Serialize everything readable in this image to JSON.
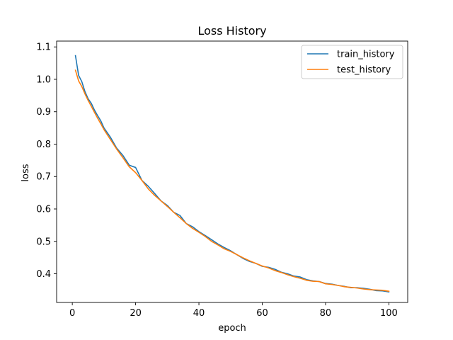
{
  "chart_data": {
    "type": "line",
    "title": "Loss History",
    "xlabel": "epoch",
    "ylabel": "loss",
    "xlim": [
      -4.95,
      105.95
    ],
    "ylim": [
      0.3115,
      1.118
    ],
    "xticks": [
      0,
      20,
      40,
      60,
      80,
      100
    ],
    "yticks": [
      0.4,
      0.5,
      0.6,
      0.7,
      0.8,
      0.9,
      1.0,
      1.1
    ],
    "xtick_labels": [
      "0",
      "20",
      "40",
      "60",
      "80",
      "100"
    ],
    "ytick_labels": [
      "0.4",
      "0.5",
      "0.6",
      "0.7",
      "0.8",
      "0.9",
      "1.0",
      "1.1"
    ],
    "legend": "top-right",
    "grid": false,
    "series": [
      {
        "name": "train_history",
        "color": "#1f77b4",
        "x": [
          1,
          2,
          3,
          4,
          5,
          6,
          7,
          8,
          9,
          10,
          12,
          14,
          16,
          18,
          20,
          22,
          24,
          26,
          28,
          30,
          32,
          34,
          36,
          38,
          40,
          42,
          44,
          46,
          48,
          50,
          52,
          54,
          56,
          58,
          60,
          62,
          64,
          66,
          68,
          70,
          72,
          74,
          76,
          78,
          80,
          82,
          84,
          86,
          88,
          90,
          92,
          94,
          96,
          98,
          100
        ],
        "y": [
          1.073,
          1.012,
          0.993,
          0.962,
          0.94,
          0.926,
          0.905,
          0.888,
          0.872,
          0.85,
          0.822,
          0.788,
          0.765,
          0.735,
          0.728,
          0.688,
          0.67,
          0.648,
          0.625,
          0.611,
          0.59,
          0.58,
          0.555,
          0.545,
          0.53,
          0.518,
          0.505,
          0.492,
          0.481,
          0.471,
          0.459,
          0.447,
          0.438,
          0.432,
          0.423,
          0.42,
          0.414,
          0.405,
          0.4,
          0.393,
          0.39,
          0.382,
          0.378,
          0.376,
          0.37,
          0.368,
          0.364,
          0.361,
          0.357,
          0.357,
          0.355,
          0.352,
          0.348,
          0.347,
          0.344
        ]
      },
      {
        "name": "test_history",
        "color": "#ff7f0e",
        "x": [
          1,
          2,
          3,
          4,
          5,
          6,
          7,
          8,
          9,
          10,
          12,
          14,
          16,
          18,
          20,
          22,
          24,
          26,
          28,
          30,
          32,
          34,
          36,
          38,
          40,
          42,
          44,
          46,
          48,
          50,
          52,
          54,
          56,
          58,
          60,
          62,
          64,
          66,
          68,
          70,
          72,
          74,
          76,
          78,
          80,
          82,
          84,
          86,
          88,
          90,
          92,
          94,
          96,
          98,
          100
        ],
        "y": [
          1.028,
          0.995,
          0.978,
          0.955,
          0.935,
          0.917,
          0.898,
          0.88,
          0.863,
          0.845,
          0.815,
          0.785,
          0.758,
          0.73,
          0.712,
          0.688,
          0.662,
          0.642,
          0.625,
          0.608,
          0.59,
          0.573,
          0.555,
          0.54,
          0.528,
          0.515,
          0.5,
          0.489,
          0.477,
          0.469,
          0.459,
          0.449,
          0.44,
          0.432,
          0.424,
          0.418,
          0.41,
          0.404,
          0.397,
          0.391,
          0.386,
          0.38,
          0.377,
          0.376,
          0.369,
          0.367,
          0.364,
          0.36,
          0.358,
          0.356,
          0.353,
          0.351,
          0.35,
          0.349,
          0.346
        ]
      }
    ]
  }
}
